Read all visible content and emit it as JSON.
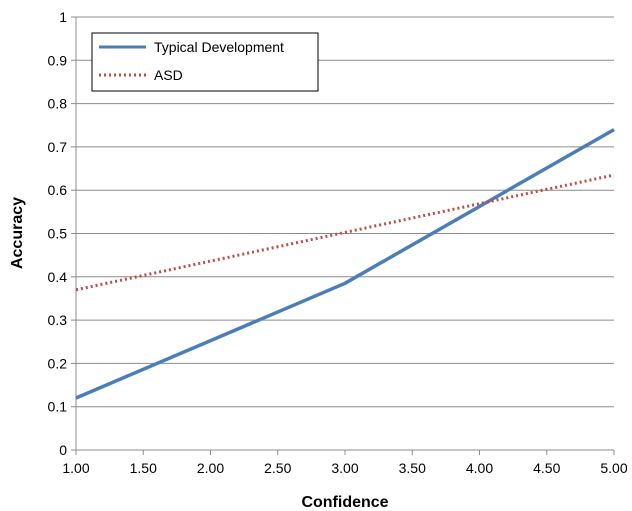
{
  "chart_data": {
    "type": "line",
    "title": "",
    "xlabel": "Confidence",
    "ylabel": "Accuracy",
    "xlim": [
      1.0,
      5.0
    ],
    "ylim": [
      0,
      1
    ],
    "x_ticks": [
      "1.00",
      "1.50",
      "2.00",
      "2.50",
      "3.00",
      "3.50",
      "4.00",
      "4.50",
      "5.00"
    ],
    "x_tick_values": [
      1.0,
      1.5,
      2.0,
      2.5,
      3.0,
      3.5,
      4.0,
      4.5,
      5.0
    ],
    "y_ticks": [
      "0",
      "0.1",
      "0.2",
      "0.3",
      "0.4",
      "0.5",
      "0.6",
      "0.7",
      "0.8",
      "0.9",
      "1"
    ],
    "y_tick_values": [
      0,
      0.1,
      0.2,
      0.3,
      0.4,
      0.5,
      0.6,
      0.7,
      0.8,
      0.9,
      1.0
    ],
    "grid": "horizontal",
    "legend_position": "top-left",
    "series": [
      {
        "name": "Typical Development",
        "color": "#4a7ebb",
        "style": "solid",
        "x": [
          1.0,
          3.0,
          5.0
        ],
        "y": [
          0.12,
          0.385,
          0.74
        ]
      },
      {
        "name": "ASD",
        "color": "#be4b48",
        "style": "dotted",
        "x": [
          1.0,
          5.0
        ],
        "y": [
          0.37,
          0.635
        ]
      }
    ]
  }
}
